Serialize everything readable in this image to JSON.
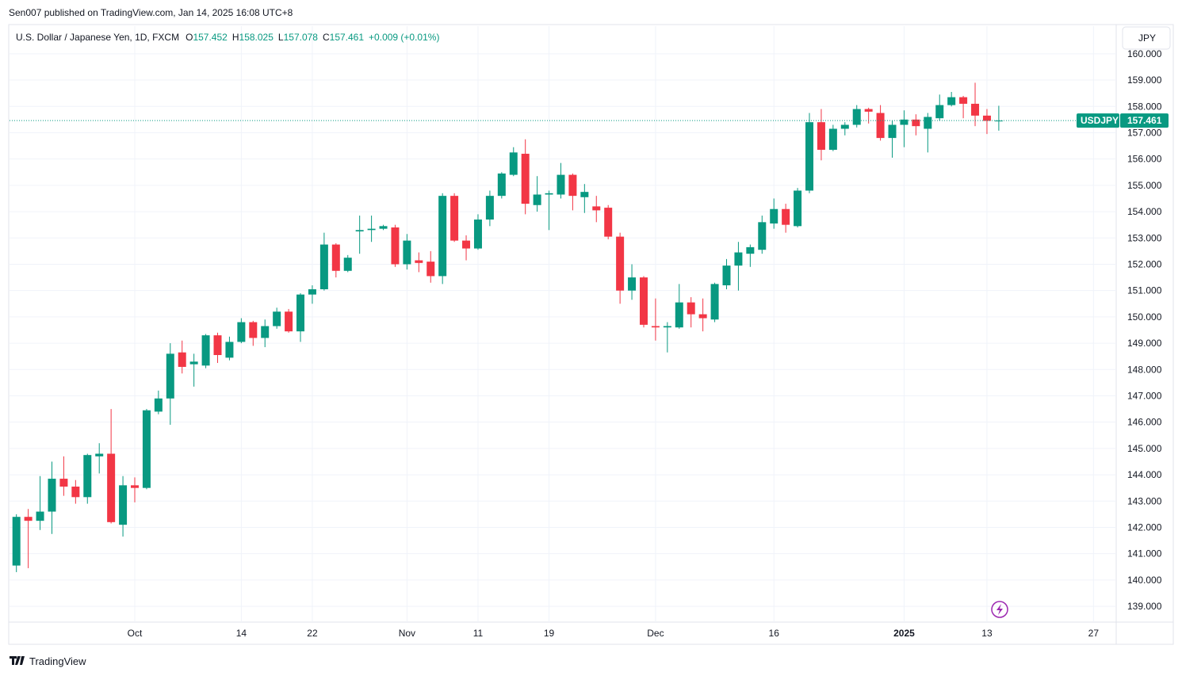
{
  "attribution": "Sen007 published on TradingView.com, Jan 14, 2025 16:08 UTC+8",
  "brand": "TradingView",
  "chart_data": {
    "type": "candlestick",
    "title": "U.S. Dollar / Japanese Yen, 1D, FXCM",
    "legend_keys": [
      "O",
      "H",
      "L",
      "C"
    ],
    "change": "+0.009 (+0.01%)",
    "symbol": "USDJPY",
    "currency": "JPY",
    "up_color": "#089981",
    "down_color": "#f23645",
    "grid": true,
    "open": [
      140.55,
      142.4,
      142.25,
      142.6,
      143.85,
      143.55,
      143.15,
      144.7,
      144.8,
      142.1,
      143.6,
      143.5,
      146.4,
      146.9,
      148.65,
      148.2,
      148.15,
      149.3,
      148.45,
      149.05,
      149.8,
      149.2,
      149.65,
      150.2,
      149.45,
      150.85,
      151.05,
      152.75,
      151.75,
      153.25,
      153.3,
      153.35,
      153.4,
      152.0,
      152.15,
      152.1,
      151.55,
      154.6,
      152.9,
      152.6,
      153.7,
      154.6,
      155.4,
      156.2,
      154.25,
      154.65,
      154.65,
      155.4,
      154.55,
      154.2,
      154.15,
      153.05,
      151.0,
      151.5,
      149.65,
      149.6,
      149.6,
      150.55,
      150.1,
      149.9,
      151.2,
      151.95,
      152.4,
      152.55,
      153.55,
      154.1,
      153.45,
      154.8,
      157.4,
      156.35,
      157.15,
      157.3,
      157.9,
      157.75,
      156.8,
      157.3,
      157.5,
      157.15,
      157.55,
      158.05,
      158.35,
      158.1,
      157.65,
      157.452
    ],
    "high": [
      142.5,
      142.7,
      143.95,
      144.5,
      144.7,
      143.8,
      144.8,
      145.2,
      146.5,
      143.95,
      143.9,
      146.5,
      147.2,
      149.0,
      149.1,
      148.6,
      149.35,
      149.4,
      149.25,
      149.95,
      149.85,
      149.9,
      150.35,
      150.3,
      150.9,
      151.2,
      153.2,
      152.8,
      152.35,
      153.85,
      153.85,
      153.5,
      153.5,
      153.15,
      152.45,
      152.5,
      154.7,
      154.7,
      153.1,
      153.9,
      154.8,
      155.5,
      156.45,
      156.75,
      155.35,
      154.8,
      155.85,
      155.45,
      155.05,
      154.6,
      154.25,
      153.2,
      152.0,
      151.55,
      150.7,
      149.8,
      151.25,
      150.75,
      150.7,
      151.3,
      152.2,
      152.85,
      152.75,
      153.85,
      154.5,
      154.3,
      154.9,
      157.75,
      157.9,
      157.3,
      157.4,
      158.05,
      157.95,
      158.05,
      157.45,
      157.85,
      157.7,
      157.75,
      158.45,
      158.55,
      158.4,
      158.9,
      157.9,
      158.025
    ],
    "low": [
      140.3,
      140.45,
      141.9,
      141.75,
      143.2,
      142.9,
      142.9,
      144.05,
      142.15,
      141.65,
      142.95,
      143.45,
      146.3,
      145.9,
      147.85,
      147.35,
      148.05,
      148.25,
      148.35,
      149.0,
      148.9,
      148.85,
      149.55,
      149.4,
      149.05,
      150.5,
      151.0,
      151.5,
      151.7,
      152.4,
      152.85,
      153.3,
      151.9,
      151.8,
      151.7,
      151.3,
      151.25,
      152.85,
      152.15,
      152.55,
      153.45,
      154.5,
      155.35,
      153.9,
      154.0,
      153.3,
      154.5,
      154.05,
      153.95,
      153.6,
      152.95,
      150.5,
      150.65,
      149.6,
      149.1,
      148.65,
      149.55,
      149.6,
      149.45,
      149.8,
      151.05,
      151.0,
      151.9,
      152.4,
      153.35,
      153.2,
      153.4,
      154.7,
      155.95,
      156.3,
      156.9,
      157.2,
      157.35,
      156.7,
      156.05,
      156.45,
      156.9,
      156.25,
      157.45,
      158.0,
      157.55,
      157.25,
      156.95,
      157.078
    ],
    "close": [
      142.4,
      142.25,
      142.6,
      143.85,
      143.55,
      143.15,
      144.75,
      144.8,
      142.2,
      143.6,
      143.5,
      146.45,
      146.9,
      148.6,
      148.1,
      148.3,
      149.3,
      148.55,
      149.05,
      149.8,
      149.2,
      149.65,
      150.2,
      149.45,
      150.85,
      151.05,
      152.75,
      151.75,
      152.25,
      153.3,
      153.35,
      153.45,
      152.0,
      152.9,
      152.05,
      151.55,
      154.6,
      152.9,
      152.6,
      153.7,
      154.6,
      155.45,
      156.25,
      154.3,
      154.65,
      154.7,
      155.4,
      154.6,
      154.75,
      154.05,
      153.05,
      151.0,
      151.5,
      149.7,
      149.6,
      149.65,
      150.55,
      150.1,
      149.95,
      151.25,
      151.95,
      152.45,
      152.65,
      153.6,
      154.1,
      153.5,
      154.8,
      157.4,
      156.35,
      157.15,
      157.3,
      157.9,
      157.8,
      156.8,
      157.3,
      157.5,
      157.25,
      157.6,
      158.05,
      158.35,
      158.1,
      157.65,
      157.45,
      157.461
    ],
    "xticks": [
      {
        "value": 10,
        "label": "Oct"
      },
      {
        "value": 19,
        "label": "14"
      },
      {
        "value": 25,
        "label": "22"
      },
      {
        "value": 33,
        "label": "Nov"
      },
      {
        "value": 39,
        "label": "11"
      },
      {
        "value": 45,
        "label": "19"
      },
      {
        "value": 54,
        "label": "Dec"
      },
      {
        "value": 64,
        "label": "16"
      },
      {
        "value": 75,
        "label": "2025"
      },
      {
        "value": 82,
        "label": "13"
      },
      {
        "value": 91,
        "label": "27"
      }
    ],
    "ylim": [
      138.4,
      161.05
    ],
    "yticks": [
      {
        "value": 139,
        "label": "139.000"
      },
      {
        "value": 140,
        "label": "140.000"
      },
      {
        "value": 141,
        "label": "141.000"
      },
      {
        "value": 142,
        "label": "142.000"
      },
      {
        "value": 143,
        "label": "143.000"
      },
      {
        "value": 144,
        "label": "144.000"
      },
      {
        "value": 145,
        "label": "145.000"
      },
      {
        "value": 146,
        "label": "146.000"
      },
      {
        "value": 147,
        "label": "147.000"
      },
      {
        "value": 148,
        "label": "148.000"
      },
      {
        "value": 149,
        "label": "149.000"
      },
      {
        "value": 150,
        "label": "150.000"
      },
      {
        "value": 151,
        "label": "151.000"
      },
      {
        "value": 152,
        "label": "152.000"
      },
      {
        "value": 153,
        "label": "153.000"
      },
      {
        "value": 154,
        "label": "154.000"
      },
      {
        "value": 155,
        "label": "155.000"
      },
      {
        "value": 156,
        "label": "156.000"
      },
      {
        "value": 157,
        "label": "157.000"
      },
      {
        "value": 158,
        "label": "158.000"
      },
      {
        "value": 159,
        "label": "159.000"
      },
      {
        "value": 160,
        "label": "160.000"
      }
    ]
  }
}
